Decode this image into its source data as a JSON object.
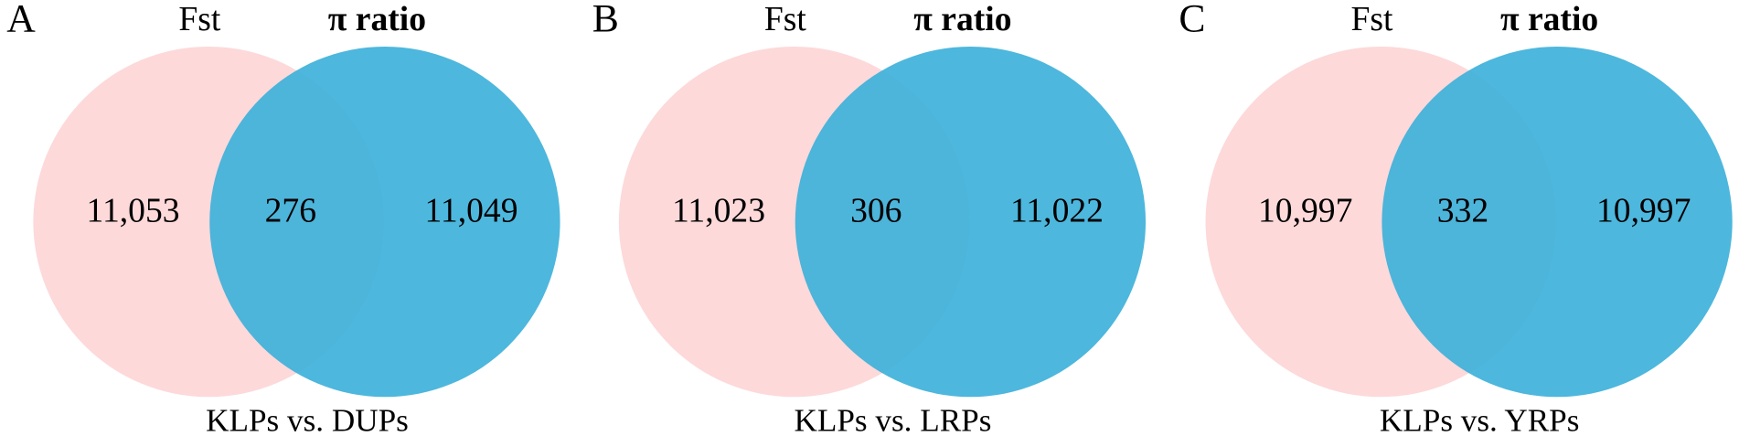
{
  "chart_data": [
    {
      "type": "venn",
      "panel_label": "A",
      "caption": "KLPs vs. DUPs",
      "sets": [
        {
          "name": "Fst",
          "color": "#fdd9da"
        },
        {
          "name": "π ratio",
          "color": "#3aafd9"
        }
      ],
      "regions": [
        "Fst only",
        "both",
        "π ratio only"
      ],
      "values": [
        11053,
        276,
        11049
      ],
      "value_labels": [
        "11,053",
        "276",
        "11,049"
      ]
    },
    {
      "type": "venn",
      "panel_label": "B",
      "caption": "KLPs vs. LRPs",
      "sets": [
        {
          "name": "Fst",
          "color": "#fdd9da"
        },
        {
          "name": "π ratio",
          "color": "#3aafd9"
        }
      ],
      "regions": [
        "Fst only",
        "both",
        "π ratio only"
      ],
      "values": [
        11023,
        306,
        11022
      ],
      "value_labels": [
        "11,023",
        "306",
        "11,022"
      ]
    },
    {
      "type": "venn",
      "panel_label": "C",
      "caption": "KLPs vs. YRPs",
      "sets": [
        {
          "name": "Fst",
          "color": "#fdd9da"
        },
        {
          "name": "π ratio",
          "color": "#3aafd9"
        }
      ],
      "regions": [
        "Fst only",
        "both",
        "π ratio only"
      ],
      "values": [
        10997,
        332,
        10997
      ],
      "value_labels": [
        "10,997",
        "332",
        "10,997"
      ]
    }
  ]
}
